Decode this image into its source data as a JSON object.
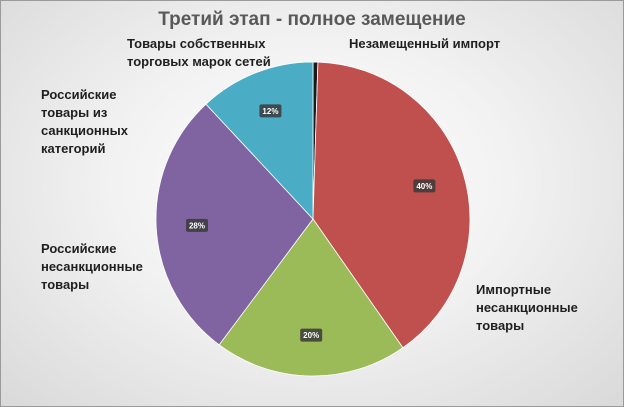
{
  "chart_data": {
    "type": "pie",
    "title": "Третий этап - полное замещение",
    "slices": [
      {
        "category": "Незамещенный импорт",
        "value": 0.5,
        "data_label": "",
        "color": "#1a1a1a"
      },
      {
        "category": "Импортные\nнесанкционные\nтовары",
        "value": 40,
        "data_label": "40%",
        "color": "#c0504d"
      },
      {
        "category": "",
        "value": 20,
        "data_label": "20%",
        "color": "#9bbb59"
      },
      {
        "category": "Российские\nнесанкционные\nтовары",
        "value": 28,
        "data_label": "28%",
        "color": "#8064a2"
      },
      {
        "category": "Российские\nтовары из\nсанкционных\nкатегорий",
        "value": 0,
        "data_label": "",
        "color": "#8064a2"
      },
      {
        "category": "Товары собственных\nторговых марок сетей",
        "value": 12,
        "data_label": "12%",
        "color": "#4bacc6"
      }
    ],
    "legend": "none",
    "data_label_style": "dark boxes inside slices"
  }
}
